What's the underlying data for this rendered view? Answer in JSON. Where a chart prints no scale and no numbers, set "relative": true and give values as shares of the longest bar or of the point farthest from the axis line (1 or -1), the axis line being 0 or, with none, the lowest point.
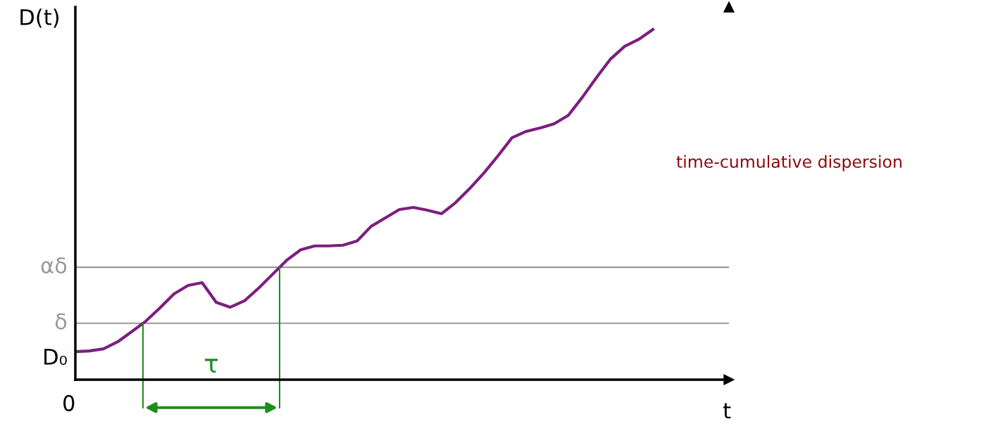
{
  "chart_data": {
    "type": "line",
    "relative": true,
    "xlabel": "t",
    "ylabel": "D(t)",
    "categories": [
      null,
      null,
      null,
      null,
      null,
      null,
      null,
      null,
      null,
      null,
      null,
      null,
      null,
      null,
      null,
      null,
      null,
      null,
      null,
      null,
      null,
      null,
      null,
      null,
      null,
      null,
      null,
      null,
      null,
      null,
      null,
      null,
      null,
      null,
      null,
      null,
      null,
      null,
      null,
      null,
      null,
      null
    ],
    "series": [
      {
        "color": "#7b1f7e",
        "values": [
          0.08,
          0.082,
          0.088,
          0.108,
          0.137,
          0.167,
          0.205,
          0.245,
          0.269,
          0.277,
          0.221,
          0.207,
          0.225,
          0.261,
          0.301,
          0.341,
          0.371,
          0.382,
          0.382,
          0.384,
          0.396,
          0.438,
          0.462,
          0.486,
          0.492,
          0.484,
          0.474,
          0.506,
          0.546,
          0.59,
          0.639,
          0.691,
          0.709,
          0.719,
          0.731,
          0.755,
          0.807,
          0.863,
          0.916,
          0.952,
          0.972,
          1
        ]
      }
    ],
    "ref_lines": [
      {
        "axis": "y",
        "value": 0.161,
        "label": "δ",
        "color": "#999999"
      },
      {
        "axis": "y",
        "value": 0.321,
        "label": "αδ",
        "color": "#999999"
      }
    ],
    "annotations": [
      "time-cumulative dispersion",
      "τ",
      "0",
      "D₀"
    ],
    "marker": "none",
    "line_style": "solid",
    "legend": false
  }
}
